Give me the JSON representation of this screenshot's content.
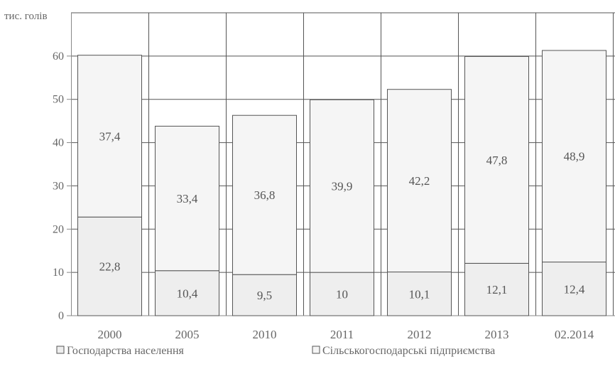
{
  "chart_data": {
    "type": "bar",
    "stacked": true,
    "unit_label": "тис. голів",
    "categories": [
      "2000",
      "2005",
      "2010",
      "2011",
      "2012",
      "2013",
      "02.2014"
    ],
    "series": [
      {
        "name": "Господарства населення",
        "values": [
          22.8,
          10.4,
          9.5,
          10,
          10.1,
          12.1,
          12.4
        ]
      },
      {
        "name": "Сільськогосподарські підприємства",
        "values": [
          37.4,
          33.4,
          36.8,
          39.9,
          42.2,
          47.8,
          48.9
        ]
      }
    ],
    "data_labels": {
      "bottom": [
        "22,8",
        "10,4",
        "9,5",
        "10",
        "10,1",
        "12,1",
        "12,4"
      ],
      "top": [
        "37,4",
        "33,4",
        "36,8",
        "39,9",
        "42,2",
        "47,8",
        "48,9"
      ]
    },
    "y_ticks": [
      "0",
      "10",
      "20",
      "30",
      "40",
      "50",
      "60"
    ],
    "ylim": [
      0,
      70
    ],
    "grid": true,
    "legend_position": "bottom",
    "colors": {
      "bottom_fill": "#eeeeee",
      "top_fill": "#f5f5f5",
      "bar_stroke": "#555555",
      "grid": "#555555",
      "axis": "#888888",
      "text": "#666666"
    }
  }
}
